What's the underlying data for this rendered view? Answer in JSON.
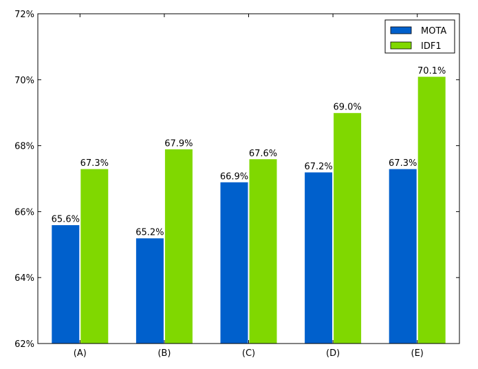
{
  "chart_data": {
    "type": "bar",
    "title": "",
    "xlabel": "",
    "ylabel": "",
    "categories": [
      "(A)",
      "(B)",
      "(C)",
      "(D)",
      "(E)"
    ],
    "series": [
      {
        "name": "MOTA",
        "color": "#0060cc",
        "values": [
          65.6,
          65.2,
          66.9,
          67.2,
          67.3
        ],
        "labels": [
          "65.6%",
          "65.2%",
          "66.9%",
          "67.2%",
          "67.3%"
        ]
      },
      {
        "name": "IDF1",
        "color": "#80d800",
        "values": [
          67.3,
          67.9,
          67.6,
          69.0,
          70.1
        ],
        "labels": [
          "67.3%",
          "67.9%",
          "67.6%",
          "69.0%",
          "70.1%"
        ]
      }
    ],
    "ylim": [
      62,
      72
    ],
    "yticks": [
      62,
      64,
      66,
      68,
      70,
      72
    ],
    "ytick_labels": [
      "62%",
      "64%",
      "66%",
      "68%",
      "70%",
      "72%"
    ],
    "grid": false,
    "legend_position": "top-right"
  }
}
